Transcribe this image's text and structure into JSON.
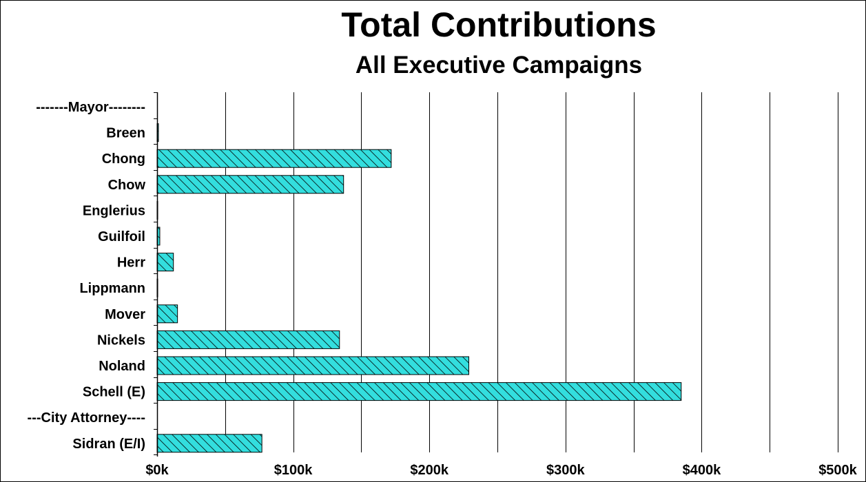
{
  "colors": {
    "bar_fill": "#33dede",
    "bar_hatch": "#000000",
    "axis": "#000000",
    "grid": "#000000",
    "background": "#ffffff"
  },
  "chart_data": {
    "type": "bar",
    "orientation": "horizontal",
    "title": "Total Contributions",
    "subtitle": "All Executive Campaigns",
    "categories": [
      "-------Mayor--------",
      "Breen",
      "Chong",
      "Chow",
      "Englerius",
      "Guilfoil",
      "Herr",
      "Lippmann",
      "Mover",
      "Nickels",
      "Noland",
      "Schell (E)",
      "---City Attorney----",
      "Sidran (E/I)"
    ],
    "values": [
      0,
      1000,
      172000,
      137000,
      500,
      2000,
      12000,
      500,
      15000,
      134000,
      229000,
      385000,
      0,
      77000
    ],
    "xlim": [
      0,
      500000
    ],
    "x_tick_values": [
      0,
      100000,
      200000,
      300000,
      400000,
      500000
    ],
    "x_tick_labels": [
      "$0k",
      "$100k",
      "$200k",
      "$300k",
      "$400k",
      "$500k"
    ],
    "xlabel": "",
    "ylabel": "",
    "grid": true,
    "legend": "none"
  }
}
